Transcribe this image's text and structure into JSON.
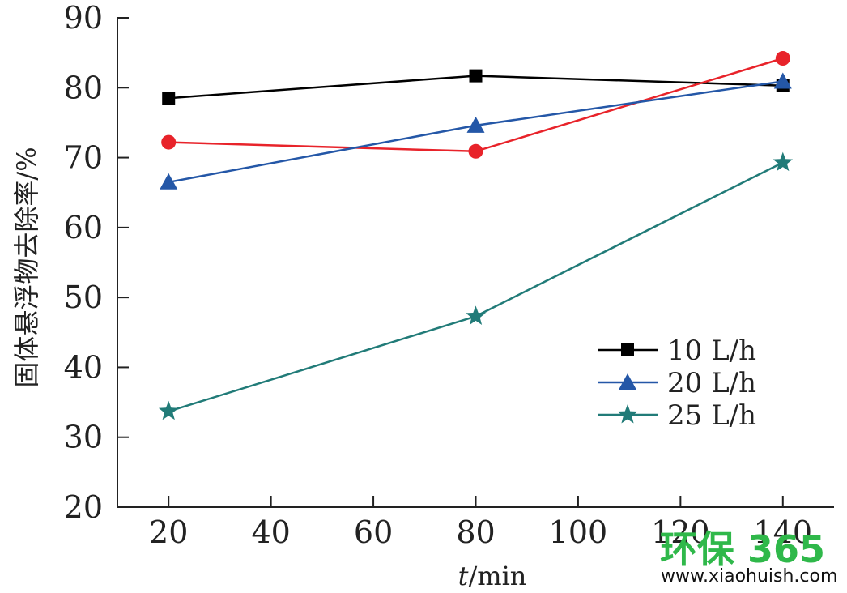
{
  "chart_data": {
    "type": "line",
    "xlabel_italic": "t",
    "xlabel_rest": "/min",
    "ylabel": "固体悬浮物去除率/%",
    "xlim": [
      10,
      150
    ],
    "ylim": [
      20,
      90
    ],
    "x_ticks": [
      20,
      40,
      60,
      80,
      100,
      120,
      140
    ],
    "y_ticks": [
      20,
      30,
      40,
      50,
      60,
      70,
      80,
      90
    ],
    "legend_position": "right-middle",
    "series": [
      {
        "name": "10 L/h",
        "marker": "square",
        "color": "#000000",
        "in_legend": true,
        "x": [
          20,
          80,
          140
        ],
        "y": [
          78.5,
          81.7,
          80.3
        ]
      },
      {
        "name": "",
        "marker": "circle",
        "color": "#e8232a",
        "in_legend": false,
        "x": [
          20,
          80,
          140
        ],
        "y": [
          72.2,
          70.9,
          84.2
        ]
      },
      {
        "name": "20 L/h",
        "marker": "triangle",
        "color": "#2457a7",
        "in_legend": true,
        "x": [
          20,
          80,
          140
        ],
        "y": [
          66.5,
          74.6,
          80.9
        ]
      },
      {
        "name": "25 L/h",
        "marker": "star",
        "color": "#217b78",
        "in_legend": true,
        "x": [
          20,
          80,
          140
        ],
        "y": [
          33.7,
          47.3,
          69.3
        ]
      }
    ]
  },
  "watermark": {
    "main": "环保 365",
    "sub": "www.xiaohuish.com"
  }
}
